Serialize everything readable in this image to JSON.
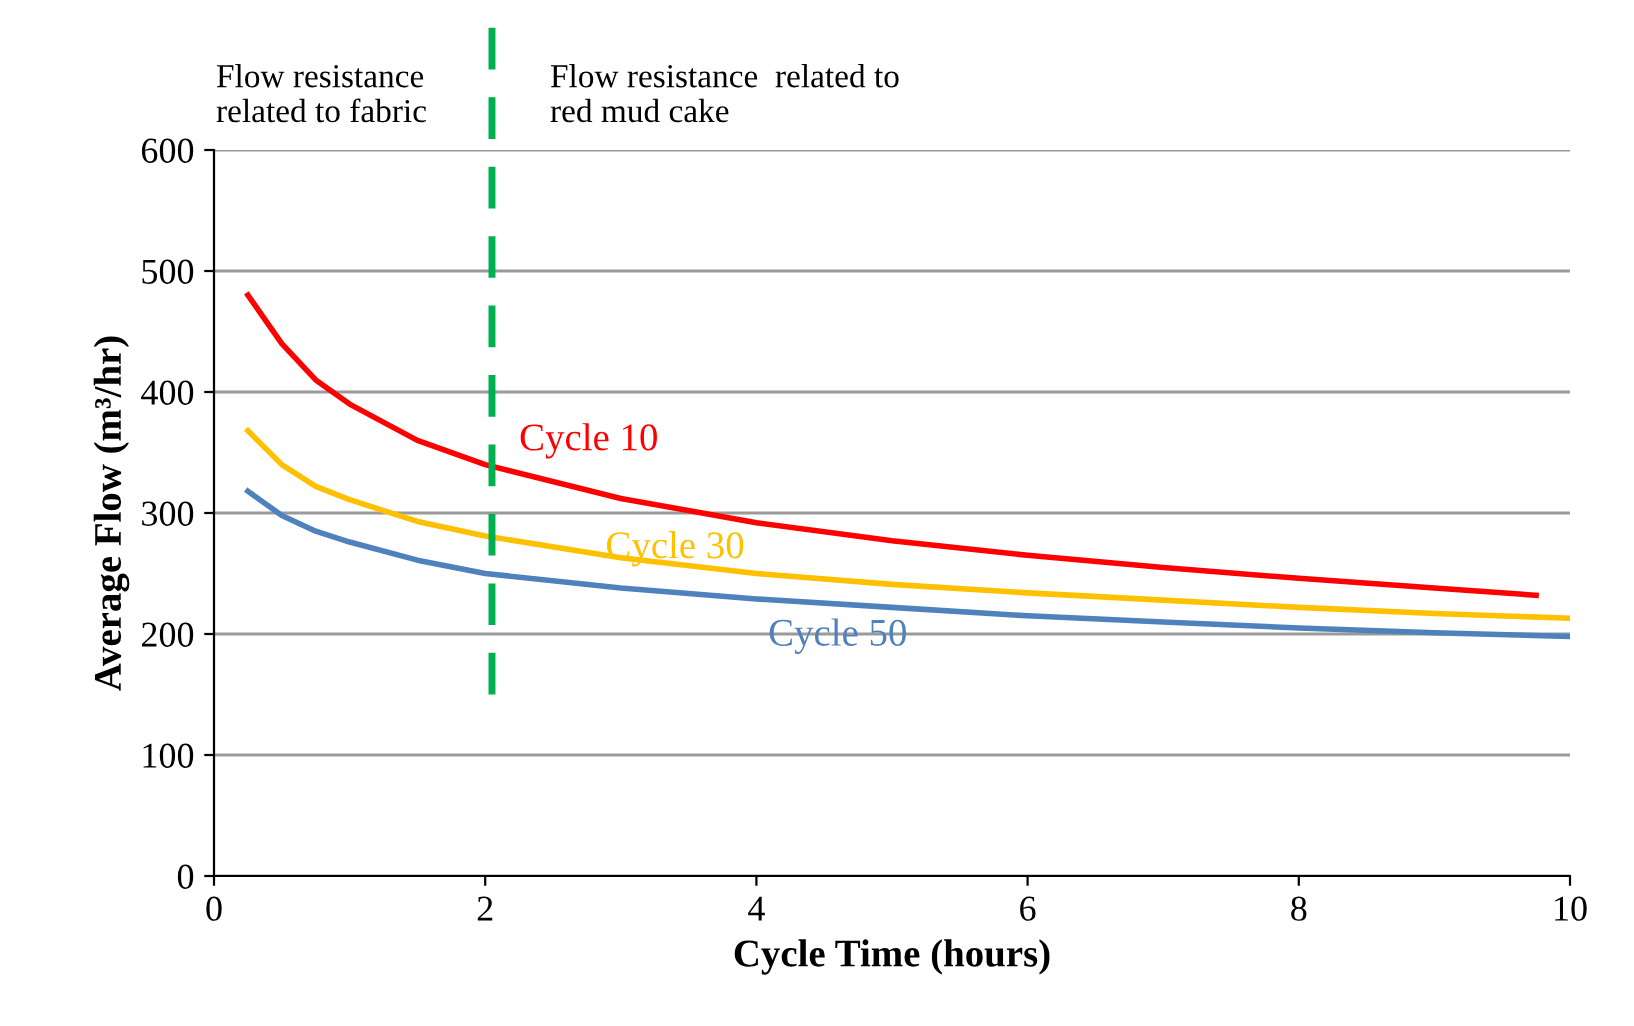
{
  "chart_data": {
    "type": "line",
    "xlabel": "Cycle Time (hours)",
    "ylabel": "Average Flow (m³/hr)",
    "xlim": [
      0,
      10
    ],
    "xticks": [
      0,
      2,
      4,
      6,
      8,
      10
    ],
    "ylim": [
      0,
      600
    ],
    "yticks": [
      0,
      100,
      200,
      300,
      400,
      500,
      600
    ],
    "grid": "y",
    "legend": false,
    "marker": "none",
    "line_style": "solid",
    "series": [
      {
        "name": "Cycle 10",
        "color": "#ff0000",
        "x": [
          0.25,
          0.5,
          0.75,
          1,
          1.5,
          2,
          3,
          4,
          5,
          6,
          7,
          8,
          9,
          9.75
        ],
        "values": [
          480,
          440,
          410,
          390,
          360,
          340,
          312,
          292,
          277,
          265,
          255,
          246,
          238,
          232
        ]
      },
      {
        "name": "Cycle 30",
        "color": "#ffc000",
        "x": [
          0.25,
          0.5,
          0.75,
          1,
          1.5,
          2,
          3,
          4,
          5,
          6,
          7,
          8,
          9,
          10
        ],
        "values": [
          368,
          340,
          322,
          311,
          293,
          281,
          263,
          250,
          241,
          234,
          228,
          222,
          217,
          213
        ]
      },
      {
        "name": "Cycle 50",
        "color": "#4f81bd",
        "x": [
          0.25,
          0.5,
          0.75,
          1,
          1.5,
          2,
          3,
          4,
          5,
          6,
          7,
          8,
          9,
          10
        ],
        "values": [
          318,
          298,
          285,
          276,
          261,
          250,
          238,
          229,
          222,
          215,
          210,
          205,
          201,
          198
        ]
      }
    ],
    "ref_lines": [
      {
        "axis": "x",
        "value": 2.05,
        "color": "#00b050",
        "line_style": "dashed"
      }
    ],
    "annotations": [
      "Flow resistance\nrelated to fabric",
      "Flow resistance  related to\nred mud cake"
    ]
  }
}
